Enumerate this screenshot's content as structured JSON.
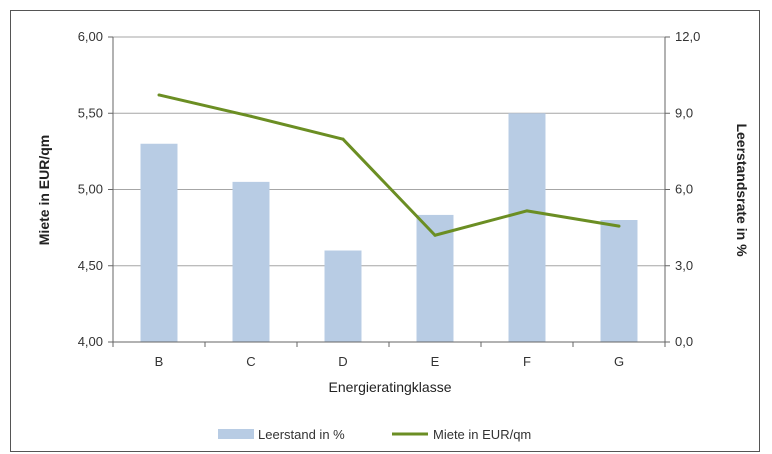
{
  "chart_data": {
    "type": "bar+line",
    "title": "",
    "xlabel": "Energieratingklasse",
    "categories": [
      "B",
      "C",
      "D",
      "E",
      "F",
      "G"
    ],
    "y_left": {
      "label": "Miete in EUR/qm",
      "min": 4.0,
      "max": 6.0,
      "ticks": [
        "4,00",
        "4,50",
        "5,00",
        "5,50",
        "6,00"
      ]
    },
    "y_right": {
      "label": "Leerstandsrate in %",
      "min": 0.0,
      "max": 12.0,
      "ticks": [
        "0,0",
        "3,0",
        "6,0",
        "9,0",
        "12,0"
      ]
    },
    "grid": true,
    "legend_position": "bottom",
    "series": [
      {
        "name": "Leerstand in %",
        "type": "bar",
        "axis": "right",
        "color": "#b8cce4",
        "values": [
          7.8,
          6.3,
          3.6,
          5.0,
          9.0,
          4.8
        ]
      },
      {
        "name": "Miete in EUR/qm",
        "type": "line",
        "axis": "left",
        "color": "#6b8e23",
        "values": [
          5.62,
          5.48,
          5.33,
          4.7,
          4.86,
          4.76
        ]
      }
    ]
  }
}
